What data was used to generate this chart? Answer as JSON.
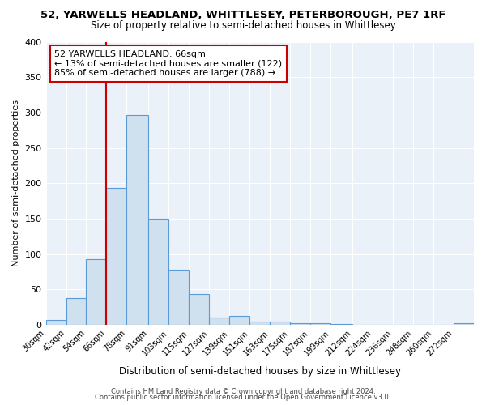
{
  "title": "52, YARWELLS HEADLAND, WHITTLESEY, PETERBOROUGH, PE7 1RF",
  "subtitle": "Size of property relative to semi-detached houses in Whittlesey",
  "xlabel": "Distribution of semi-detached houses by size in Whittlesey",
  "ylabel": "Number of semi-detached properties",
  "bar_color": "#cfe0ef",
  "bar_edge_color": "#5b9bd5",
  "bin_labels": [
    "30sqm",
    "42sqm",
    "54sqm",
    "66sqm",
    "78sqm",
    "91sqm",
    "103sqm",
    "115sqm",
    "127sqm",
    "139sqm",
    "151sqm",
    "163sqm",
    "175sqm",
    "187sqm",
    "199sqm",
    "212sqm",
    "224sqm",
    "236sqm",
    "248sqm",
    "260sqm",
    "272sqm"
  ],
  "bin_lefts": [
    30,
    42,
    54,
    66,
    78,
    91,
    103,
    115,
    127,
    139,
    151,
    163,
    175,
    187,
    199,
    212,
    224,
    236,
    248,
    260,
    272
  ],
  "bin_rights": [
    42,
    54,
    66,
    78,
    91,
    103,
    115,
    127,
    139,
    151,
    163,
    175,
    187,
    199,
    212,
    224,
    236,
    248,
    260,
    272,
    284
  ],
  "bin_values": [
    7,
    38,
    93,
    193,
    296,
    150,
    78,
    43,
    10,
    13,
    5,
    5,
    2,
    2,
    1,
    0,
    0,
    0,
    0,
    0,
    2
  ],
  "property_line_x": 66,
  "vline_color": "#cc0000",
  "annotation_title": "52 YARWELLS HEADLAND: 66sqm",
  "annotation_line1": "← 13% of semi-detached houses are smaller (122)",
  "annotation_line2": "85% of semi-detached houses are larger (788) →",
  "annotation_box_color": "#cc0000",
  "ylim": [
    0,
    400
  ],
  "yticks": [
    0,
    50,
    100,
    150,
    200,
    250,
    300,
    350,
    400
  ],
  "background_color": "#ffffff",
  "plot_bg_color": "#eaf1f8",
  "grid_color": "#ffffff",
  "footer1": "Contains HM Land Registry data © Crown copyright and database right 2024.",
  "footer2": "Contains public sector information licensed under the Open Government Licence v3.0."
}
